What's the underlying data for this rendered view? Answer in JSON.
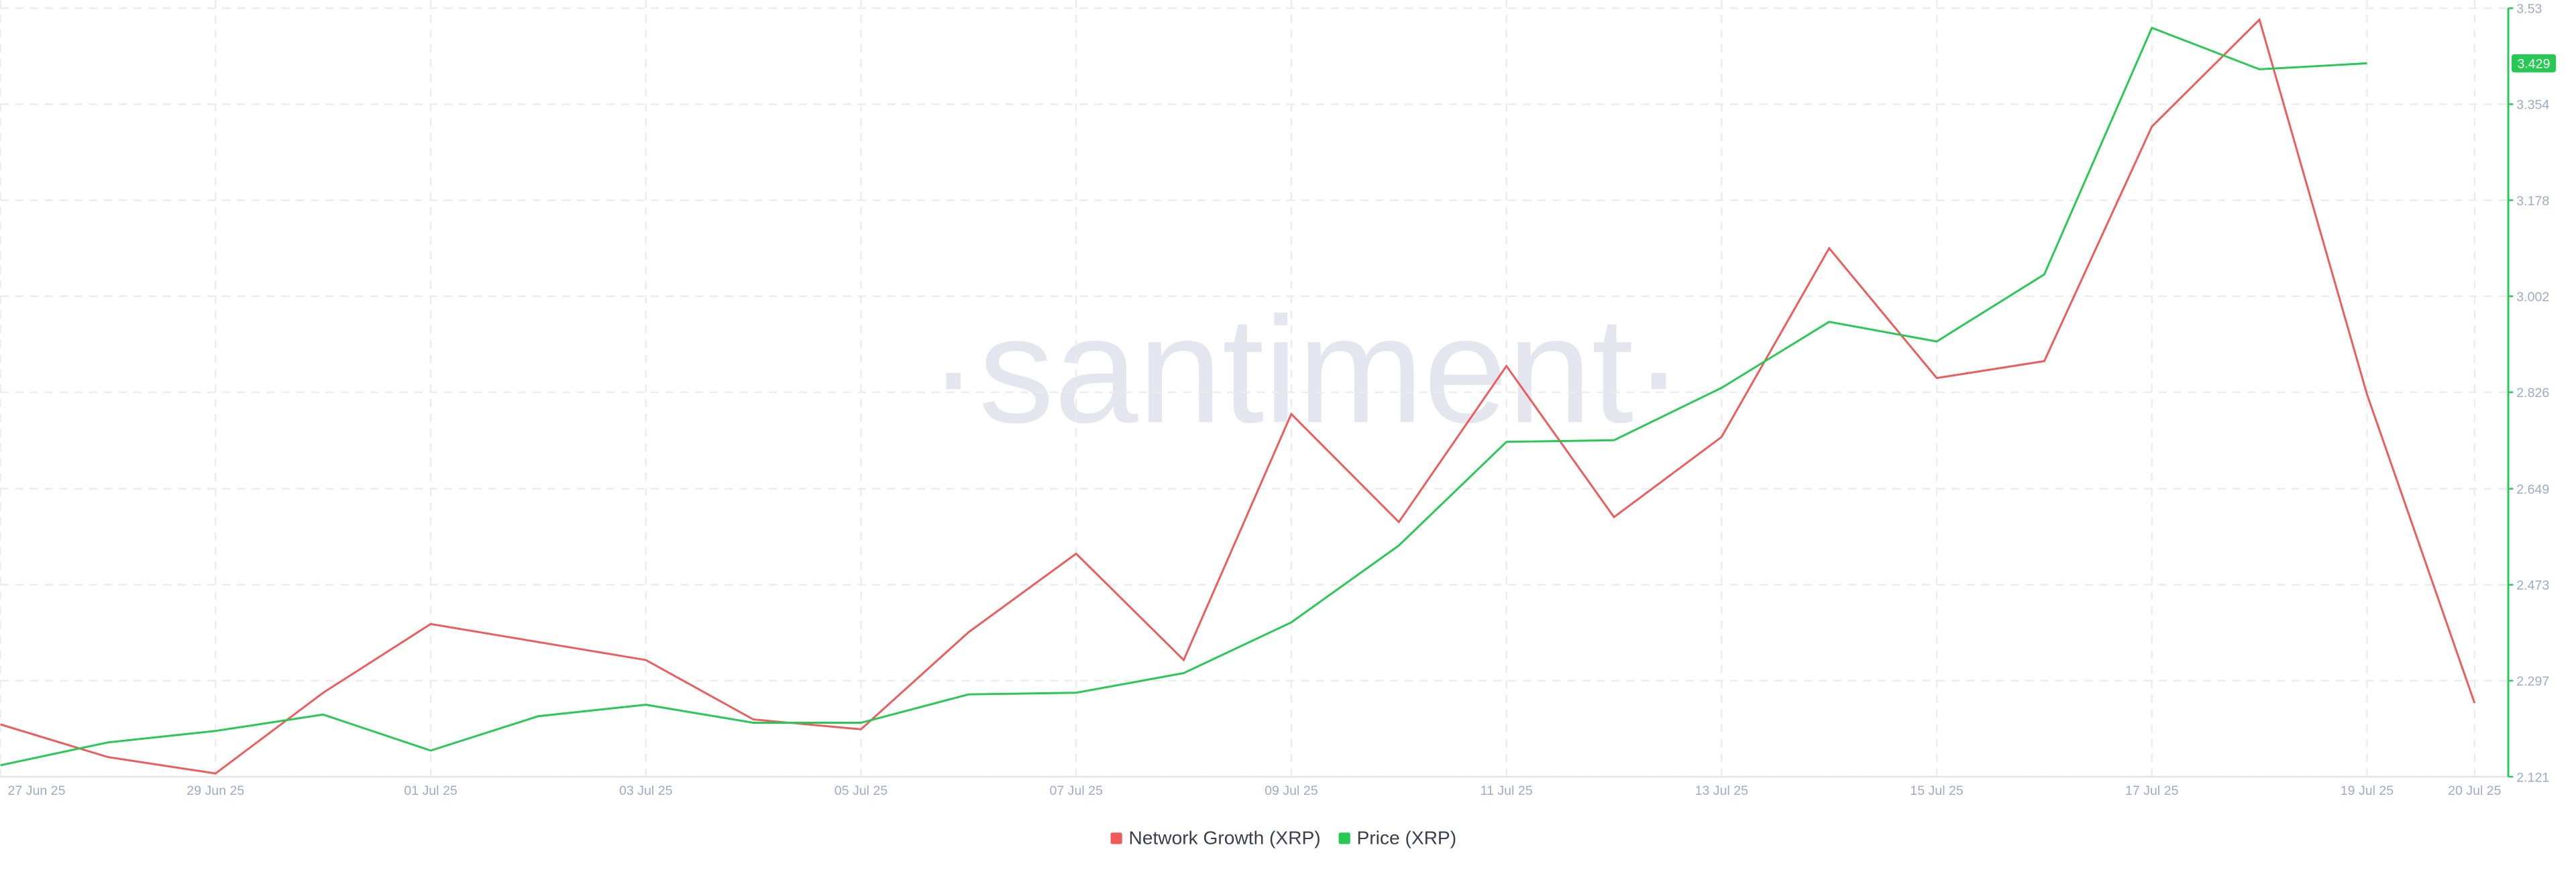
{
  "chart_data": {
    "type": "line",
    "watermark": "·santiment·",
    "categories": [
      "27 Jun 25",
      null,
      "29 Jun 25",
      null,
      "01 Jul 25",
      null,
      "03 Jul 25",
      null,
      "05 Jul 25",
      null,
      "07 Jul 25",
      null,
      "09 Jul 25",
      null,
      "11 Jul 25",
      null,
      "13 Jul 25",
      null,
      "15 Jul 25",
      null,
      "17 Jul 25",
      null,
      "19 Jul 25",
      "20 Jul 25"
    ],
    "series": [
      {
        "name": "Network Growth (XRP)",
        "color": "#ef5a5a",
        "values": [
          2.217,
          2.157,
          2.127,
          2.275,
          2.401,
          2.368,
          2.335,
          2.226,
          2.208,
          2.386,
          2.53,
          2.335,
          2.786,
          2.588,
          2.874,
          2.597,
          2.744,
          3.09,
          2.852,
          2.883,
          3.313,
          3.509,
          2.822,
          2.256
        ]
      },
      {
        "name": "Price (XRP)",
        "color": "#26c953",
        "axis": "y2",
        "values": [
          2.142,
          2.184,
          2.205,
          2.235,
          2.169,
          2.232,
          2.253,
          2.22,
          2.22,
          2.272,
          2.275,
          2.311,
          2.404,
          2.545,
          2.735,
          2.738,
          2.834,
          2.955,
          2.919,
          3.042,
          3.494,
          3.418,
          3.429,
          null
        ]
      }
    ],
    "y2lim": [
      2.121,
      3.53
    ],
    "y2ticks": [
      2.121,
      2.297,
      2.473,
      2.649,
      2.826,
      3.002,
      3.178,
      3.354,
      3.53
    ],
    "grid": true
  }
}
